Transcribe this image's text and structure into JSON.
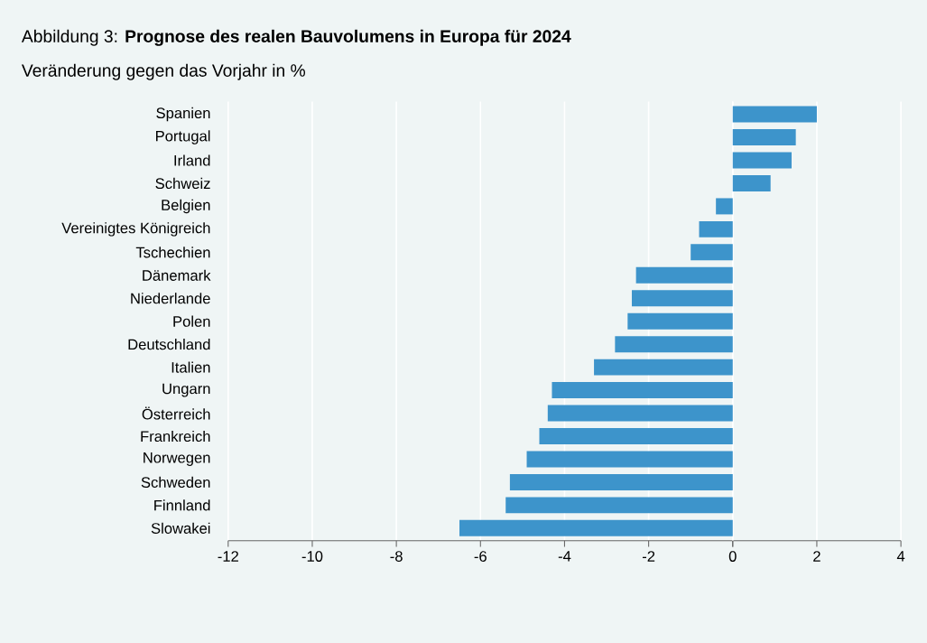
{
  "chart_data": {
    "type": "bar",
    "orientation": "horizontal",
    "title": "Abbildung 3: **Prognose des realen Bauvolumens in Europa für 2024**",
    "subtitle": "Veränderung gegen das Vorjahr in %",
    "categories": [
      "Spanien",
      "Portugal",
      "Irland",
      "Schweiz",
      "Belgien",
      "Vereinigtes Königreich",
      "Tschechien",
      "Dänemark",
      "Niederlande",
      "Polen",
      "Deutschland",
      "Italien",
      "Ungarn",
      "Österreich",
      "Frankreich",
      "Norwegen",
      "Schweden",
      "Finnland",
      "Slowakei"
    ],
    "values": [
      2.0,
      1.5,
      1.4,
      0.9,
      -0.4,
      -0.8,
      -1.0,
      -2.3,
      -2.4,
      -2.5,
      -2.8,
      -3.3,
      -4.3,
      -4.4,
      -4.6,
      -4.9,
      -5.3,
      -5.4,
      -6.5
    ],
    "color": "#3d94cb",
    "xlim": [
      -12,
      4
    ],
    "xticks": [
      -12,
      -10,
      -8,
      -6,
      -4,
      -2,
      0,
      2,
      4
    ],
    "grid": "x"
  }
}
